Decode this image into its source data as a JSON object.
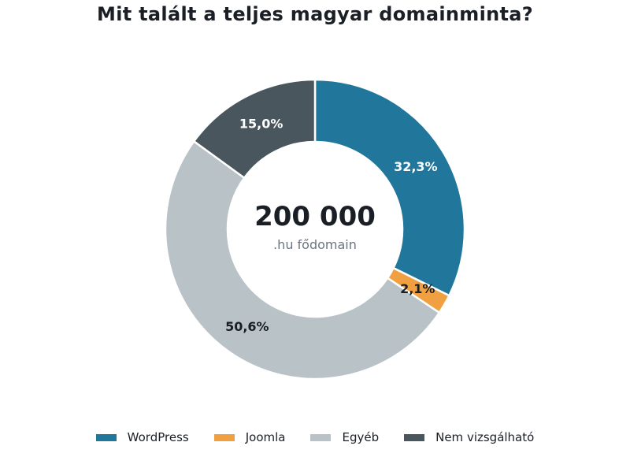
{
  "chart_data": {
    "type": "pie",
    "variant": "donut",
    "title": "Mit talált a teljes magyar domainminta?",
    "center_value": "200 000",
    "center_label": ".hu fődomain",
    "legend_position": "bottom",
    "slices": [
      {
        "name": "WordPress",
        "value": 32.3,
        "label": "32,3%",
        "color": "#21769c",
        "label_color": "#ffffff"
      },
      {
        "name": "Joomla",
        "value": 2.1,
        "label": "2,1%",
        "color": "#f0a040",
        "label_color": "#1a1f26"
      },
      {
        "name": "Egyéb",
        "value": 50.6,
        "label": "50,6%",
        "color": "#b8c2c7",
        "label_color": "#1a1f26"
      },
      {
        "name": "Nem vizsgálható",
        "value": 15.0,
        "label": "15,0%",
        "color": "#4a565e",
        "label_color": "#ffffff"
      }
    ]
  }
}
